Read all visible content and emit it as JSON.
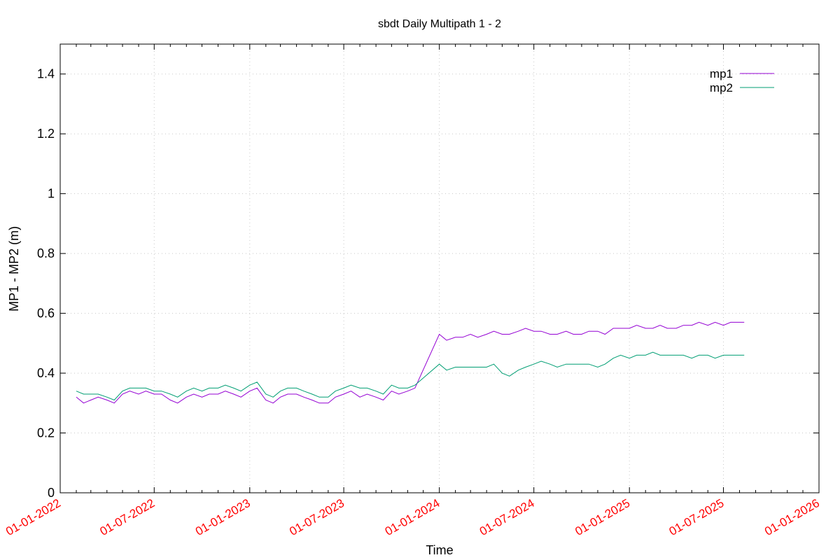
{
  "chart_data": {
    "type": "line",
    "title": "sbdt Daily Multipath 1 - 2",
    "xlabel": "Time",
    "ylabel": "MP1 - MP2 (m)",
    "xlim": [
      "2022-01-01",
      "2026-01-01"
    ],
    "ylim": [
      0,
      1.5
    ],
    "yticks": [
      0,
      0.2,
      0.4,
      0.6,
      0.8,
      1,
      1.2,
      1.4
    ],
    "ytick_labels": [
      "0",
      "0.2",
      "0.4",
      "0.6",
      "0.8",
      "1",
      "1.2",
      "1.4"
    ],
    "xticks": [
      "2022-01-01",
      "2022-07-01",
      "2023-01-01",
      "2023-07-01",
      "2024-01-01",
      "2024-07-01",
      "2025-01-01",
      "2025-07-01",
      "2026-01-01"
    ],
    "xtick_labels": [
      "01-01-2022",
      "01-07-2022",
      "01-01-2023",
      "01-07-2023",
      "01-01-2024",
      "01-07-2024",
      "01-01-2025",
      "01-07-2025",
      "01-01-2026"
    ],
    "grid": true,
    "legend_position": "top-right",
    "series": [
      {
        "name": "mp1",
        "color": "#9400d3",
        "points": [
          [
            "2022-02-01",
            0.32
          ],
          [
            "2022-02-15",
            0.3
          ],
          [
            "2022-03-01",
            0.31
          ],
          [
            "2022-03-15",
            0.32
          ],
          [
            "2022-04-01",
            0.31
          ],
          [
            "2022-04-15",
            0.3
          ],
          [
            "2022-05-01",
            0.33
          ],
          [
            "2022-05-15",
            0.34
          ],
          [
            "2022-06-01",
            0.33
          ],
          [
            "2022-06-15",
            0.34
          ],
          [
            "2022-07-01",
            0.33
          ],
          [
            "2022-07-15",
            0.33
          ],
          [
            "2022-08-01",
            0.31
          ],
          [
            "2022-08-15",
            0.3
          ],
          [
            "2022-09-01",
            0.32
          ],
          [
            "2022-09-15",
            0.33
          ],
          [
            "2022-10-01",
            0.32
          ],
          [
            "2022-10-15",
            0.33
          ],
          [
            "2022-11-01",
            0.33
          ],
          [
            "2022-11-15",
            0.34
          ],
          [
            "2022-12-01",
            0.33
          ],
          [
            "2022-12-15",
            0.32
          ],
          [
            "2023-01-01",
            0.34
          ],
          [
            "2023-01-15",
            0.35
          ],
          [
            "2023-02-01",
            0.31
          ],
          [
            "2023-02-15",
            0.3
          ],
          [
            "2023-03-01",
            0.32
          ],
          [
            "2023-03-15",
            0.33
          ],
          [
            "2023-04-01",
            0.33
          ],
          [
            "2023-04-15",
            0.32
          ],
          [
            "2023-05-01",
            0.31
          ],
          [
            "2023-05-15",
            0.3
          ],
          [
            "2023-06-01",
            0.3
          ],
          [
            "2023-06-15",
            0.32
          ],
          [
            "2023-07-01",
            0.33
          ],
          [
            "2023-07-15",
            0.34
          ],
          [
            "2023-08-01",
            0.32
          ],
          [
            "2023-08-15",
            0.33
          ],
          [
            "2023-09-01",
            0.32
          ],
          [
            "2023-09-15",
            0.31
          ],
          [
            "2023-10-01",
            0.34
          ],
          [
            "2023-10-15",
            0.33
          ],
          [
            "2023-11-01",
            0.34
          ],
          [
            "2023-11-15",
            0.35
          ],
          [
            "2024-01-01",
            0.53
          ],
          [
            "2024-01-15",
            0.51
          ],
          [
            "2024-02-01",
            0.52
          ],
          [
            "2024-02-15",
            0.52
          ],
          [
            "2024-03-01",
            0.53
          ],
          [
            "2024-03-15",
            0.52
          ],
          [
            "2024-04-01",
            0.53
          ],
          [
            "2024-04-15",
            0.54
          ],
          [
            "2024-05-01",
            0.53
          ],
          [
            "2024-05-15",
            0.53
          ],
          [
            "2024-06-01",
            0.54
          ],
          [
            "2024-06-15",
            0.55
          ],
          [
            "2024-07-01",
            0.54
          ],
          [
            "2024-07-15",
            0.54
          ],
          [
            "2024-08-01",
            0.53
          ],
          [
            "2024-08-15",
            0.53
          ],
          [
            "2024-09-01",
            0.54
          ],
          [
            "2024-09-15",
            0.53
          ],
          [
            "2024-10-01",
            0.53
          ],
          [
            "2024-10-15",
            0.54
          ],
          [
            "2024-11-01",
            0.54
          ],
          [
            "2024-11-15",
            0.53
          ],
          [
            "2024-12-01",
            0.55
          ],
          [
            "2024-12-15",
            0.55
          ],
          [
            "2025-01-01",
            0.55
          ],
          [
            "2025-01-15",
            0.56
          ],
          [
            "2025-02-01",
            0.55
          ],
          [
            "2025-02-15",
            0.55
          ],
          [
            "2025-03-01",
            0.56
          ],
          [
            "2025-03-15",
            0.55
          ],
          [
            "2025-04-01",
            0.55
          ],
          [
            "2025-04-15",
            0.56
          ],
          [
            "2025-05-01",
            0.56
          ],
          [
            "2025-05-15",
            0.57
          ],
          [
            "2025-06-01",
            0.56
          ],
          [
            "2025-06-15",
            0.57
          ],
          [
            "2025-07-01",
            0.56
          ],
          [
            "2025-07-15",
            0.57
          ],
          [
            "2025-08-01",
            0.57
          ],
          [
            "2025-08-10",
            0.57
          ]
        ]
      },
      {
        "name": "mp2",
        "color": "#009e73",
        "points": [
          [
            "2022-02-01",
            0.34
          ],
          [
            "2022-02-15",
            0.33
          ],
          [
            "2022-03-01",
            0.33
          ],
          [
            "2022-03-15",
            0.33
          ],
          [
            "2022-04-01",
            0.32
          ],
          [
            "2022-04-15",
            0.31
          ],
          [
            "2022-05-01",
            0.34
          ],
          [
            "2022-05-15",
            0.35
          ],
          [
            "2022-06-01",
            0.35
          ],
          [
            "2022-06-15",
            0.35
          ],
          [
            "2022-07-01",
            0.34
          ],
          [
            "2022-07-15",
            0.34
          ],
          [
            "2022-08-01",
            0.33
          ],
          [
            "2022-08-15",
            0.32
          ],
          [
            "2022-09-01",
            0.34
          ],
          [
            "2022-09-15",
            0.35
          ],
          [
            "2022-10-01",
            0.34
          ],
          [
            "2022-10-15",
            0.35
          ],
          [
            "2022-11-01",
            0.35
          ],
          [
            "2022-11-15",
            0.36
          ],
          [
            "2022-12-01",
            0.35
          ],
          [
            "2022-12-15",
            0.34
          ],
          [
            "2023-01-01",
            0.36
          ],
          [
            "2023-01-15",
            0.37
          ],
          [
            "2023-02-01",
            0.33
          ],
          [
            "2023-02-15",
            0.32
          ],
          [
            "2023-03-01",
            0.34
          ],
          [
            "2023-03-15",
            0.35
          ],
          [
            "2023-04-01",
            0.35
          ],
          [
            "2023-04-15",
            0.34
          ],
          [
            "2023-05-01",
            0.33
          ],
          [
            "2023-05-15",
            0.32
          ],
          [
            "2023-06-01",
            0.32
          ],
          [
            "2023-06-15",
            0.34
          ],
          [
            "2023-07-01",
            0.35
          ],
          [
            "2023-07-15",
            0.36
          ],
          [
            "2023-08-01",
            0.35
          ],
          [
            "2023-08-15",
            0.35
          ],
          [
            "2023-09-01",
            0.34
          ],
          [
            "2023-09-15",
            0.33
          ],
          [
            "2023-10-01",
            0.36
          ],
          [
            "2023-10-15",
            0.35
          ],
          [
            "2023-11-01",
            0.35
          ],
          [
            "2023-11-15",
            0.36
          ],
          [
            "2024-01-01",
            0.43
          ],
          [
            "2024-01-15",
            0.41
          ],
          [
            "2024-02-01",
            0.42
          ],
          [
            "2024-02-15",
            0.42
          ],
          [
            "2024-03-01",
            0.42
          ],
          [
            "2024-03-15",
            0.42
          ],
          [
            "2024-04-01",
            0.42
          ],
          [
            "2024-04-15",
            0.43
          ],
          [
            "2024-05-01",
            0.4
          ],
          [
            "2024-05-15",
            0.39
          ],
          [
            "2024-06-01",
            0.41
          ],
          [
            "2024-06-15",
            0.42
          ],
          [
            "2024-07-01",
            0.43
          ],
          [
            "2024-07-15",
            0.44
          ],
          [
            "2024-08-01",
            0.43
          ],
          [
            "2024-08-15",
            0.42
          ],
          [
            "2024-09-01",
            0.43
          ],
          [
            "2024-09-15",
            0.43
          ],
          [
            "2024-10-01",
            0.43
          ],
          [
            "2024-10-15",
            0.43
          ],
          [
            "2024-11-01",
            0.42
          ],
          [
            "2024-11-15",
            0.43
          ],
          [
            "2024-12-01",
            0.45
          ],
          [
            "2024-12-15",
            0.46
          ],
          [
            "2025-01-01",
            0.45
          ],
          [
            "2025-01-15",
            0.46
          ],
          [
            "2025-02-01",
            0.46
          ],
          [
            "2025-02-15",
            0.47
          ],
          [
            "2025-03-01",
            0.46
          ],
          [
            "2025-03-15",
            0.46
          ],
          [
            "2025-04-01",
            0.46
          ],
          [
            "2025-04-15",
            0.46
          ],
          [
            "2025-05-01",
            0.45
          ],
          [
            "2025-05-15",
            0.46
          ],
          [
            "2025-06-01",
            0.46
          ],
          [
            "2025-06-15",
            0.45
          ],
          [
            "2025-07-01",
            0.46
          ],
          [
            "2025-07-15",
            0.46
          ],
          [
            "2025-08-01",
            0.46
          ],
          [
            "2025-08-10",
            0.46
          ]
        ]
      }
    ]
  }
}
